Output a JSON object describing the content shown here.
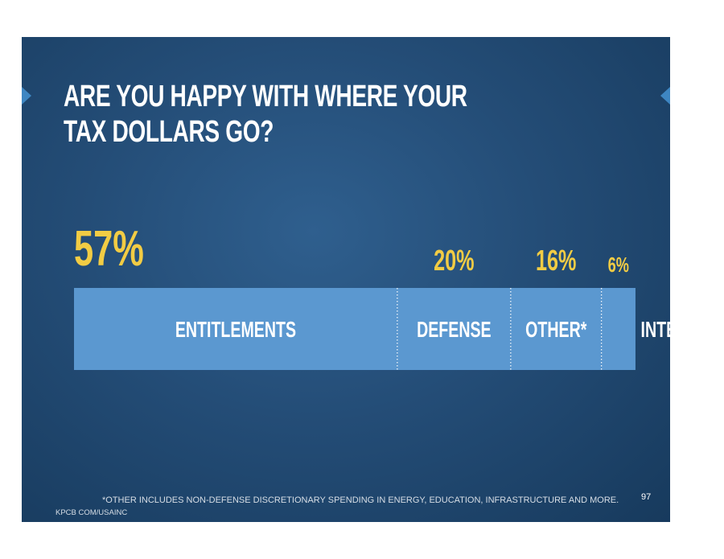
{
  "slide": {
    "title_line1": "ARE YOU HAPPY WITH WHERE YOUR",
    "title_line2": "TAX DOLLARS GO?",
    "footnote": "*OTHER INCLUDES NON-DEFENSE DISCRETIONARY SPENDING IN ENERGY, EDUCATION, INFRASTRUCTURE AND MORE.",
    "source": "KPCB COM/USAINC",
    "page_number": "97"
  },
  "colors": {
    "bar": "#5b98d0",
    "value_label": "#f2cc44",
    "category_label": "#ffffff",
    "background": "#244d77"
  },
  "chart_data": {
    "type": "bar",
    "orientation": "horizontal-stacked",
    "categories": [
      "ENTITLEMENTS",
      "DEFENSE",
      "OTHER*",
      "INTEREST"
    ],
    "values": [
      57,
      20,
      16,
      6
    ],
    "value_labels": [
      "57%",
      "20%",
      "16%",
      "6%"
    ],
    "unit": "%"
  }
}
